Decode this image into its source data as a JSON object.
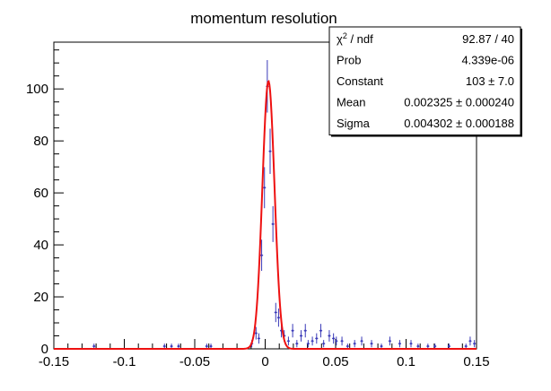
{
  "chart_data": {
    "type": "scatter",
    "title": "momentum resolution",
    "xlabel": "",
    "ylabel": "",
    "xlim": [
      -0.15,
      0.15
    ],
    "ylim": [
      0,
      118
    ],
    "x_ticks": [
      "-0.15",
      "-0.1",
      "-0.05",
      "0",
      "0.05",
      "0.1",
      "0.15"
    ],
    "x_tick_values": [
      -0.15,
      -0.1,
      -0.05,
      0,
      0.05,
      0.1,
      0.15
    ],
    "y_ticks": [
      "0",
      "20",
      "40",
      "60",
      "80",
      "100"
    ],
    "y_tick_values": [
      0,
      20,
      40,
      60,
      80,
      100
    ],
    "grid": false,
    "colors": {
      "data": "#3a3ab8",
      "fit": "#ee1111",
      "axis": "#000000"
    },
    "series": [
      {
        "kind": "histogram-points",
        "x": [
          -0.1215,
          -0.0715,
          -0.0665,
          -0.0615,
          -0.0415,
          -0.0385,
          -0.0095,
          -0.0065,
          -0.0045,
          -0.0025,
          -0.0005,
          0.0015,
          0.0035,
          0.0055,
          0.0075,
          0.0095,
          0.0115,
          0.0135,
          0.0165,
          0.0195,
          0.0225,
          0.0255,
          0.0285,
          0.0305,
          0.0335,
          0.0365,
          0.0395,
          0.0415,
          0.0455,
          0.0485,
          0.0505,
          0.0545,
          0.0585,
          0.0635,
          0.0685,
          0.0755,
          0.0825,
          0.0885,
          0.0955,
          0.1035,
          0.1085,
          0.1155,
          0.1205,
          0.1305,
          0.1425,
          0.1455,
          0.1485
        ],
        "y": [
          1,
          1,
          1,
          1,
          1,
          1,
          2,
          6,
          4,
          36,
          62,
          101,
          76,
          48,
          14,
          12,
          7,
          5,
          3,
          7,
          2,
          5,
          7,
          2,
          3,
          4,
          7,
          2,
          5,
          4,
          3,
          3,
          1,
          2,
          3,
          2,
          1,
          3,
          2,
          2,
          1,
          1,
          1,
          1,
          1,
          3,
          2
        ],
        "yerr": [
          1,
          1,
          1,
          1,
          1,
          1,
          1.4,
          2.4,
          2,
          6,
          7.9,
          10.1,
          8.7,
          6.9,
          3.7,
          3.5,
          2.6,
          2.2,
          1.7,
          2.6,
          1.4,
          2.2,
          2.6,
          1.4,
          1.7,
          2,
          2.6,
          1.4,
          2.2,
          2,
          1.7,
          1.7,
          1,
          1.4,
          1.7,
          1.4,
          1,
          1.7,
          1.4,
          1.4,
          1,
          1,
          1,
          1,
          1,
          1.7,
          1.4
        ]
      },
      {
        "kind": "gaussian-fit",
        "constant": 103,
        "mean": 0.002325,
        "sigma": 0.004302
      }
    ],
    "stats_box": {
      "position": "top-right",
      "rows": [
        {
          "label_main": "χ",
          "label_sup": "2",
          "label_rest": " / ndf",
          "value": "92.87 / 40"
        },
        {
          "label_main": "Prob",
          "label_sup": "",
          "label_rest": "",
          "value": "4.339e-06"
        },
        {
          "label_main": "Constant",
          "label_sup": "",
          "label_rest": "",
          "value": "103 ± 7.0"
        },
        {
          "label_main": "Mean",
          "label_sup": "",
          "label_rest": "",
          "value": "0.002325 ± 0.000240"
        },
        {
          "label_main": "Sigma",
          "label_sup": "",
          "label_rest": "",
          "value": "0.004302 ± 0.000188"
        }
      ]
    }
  }
}
